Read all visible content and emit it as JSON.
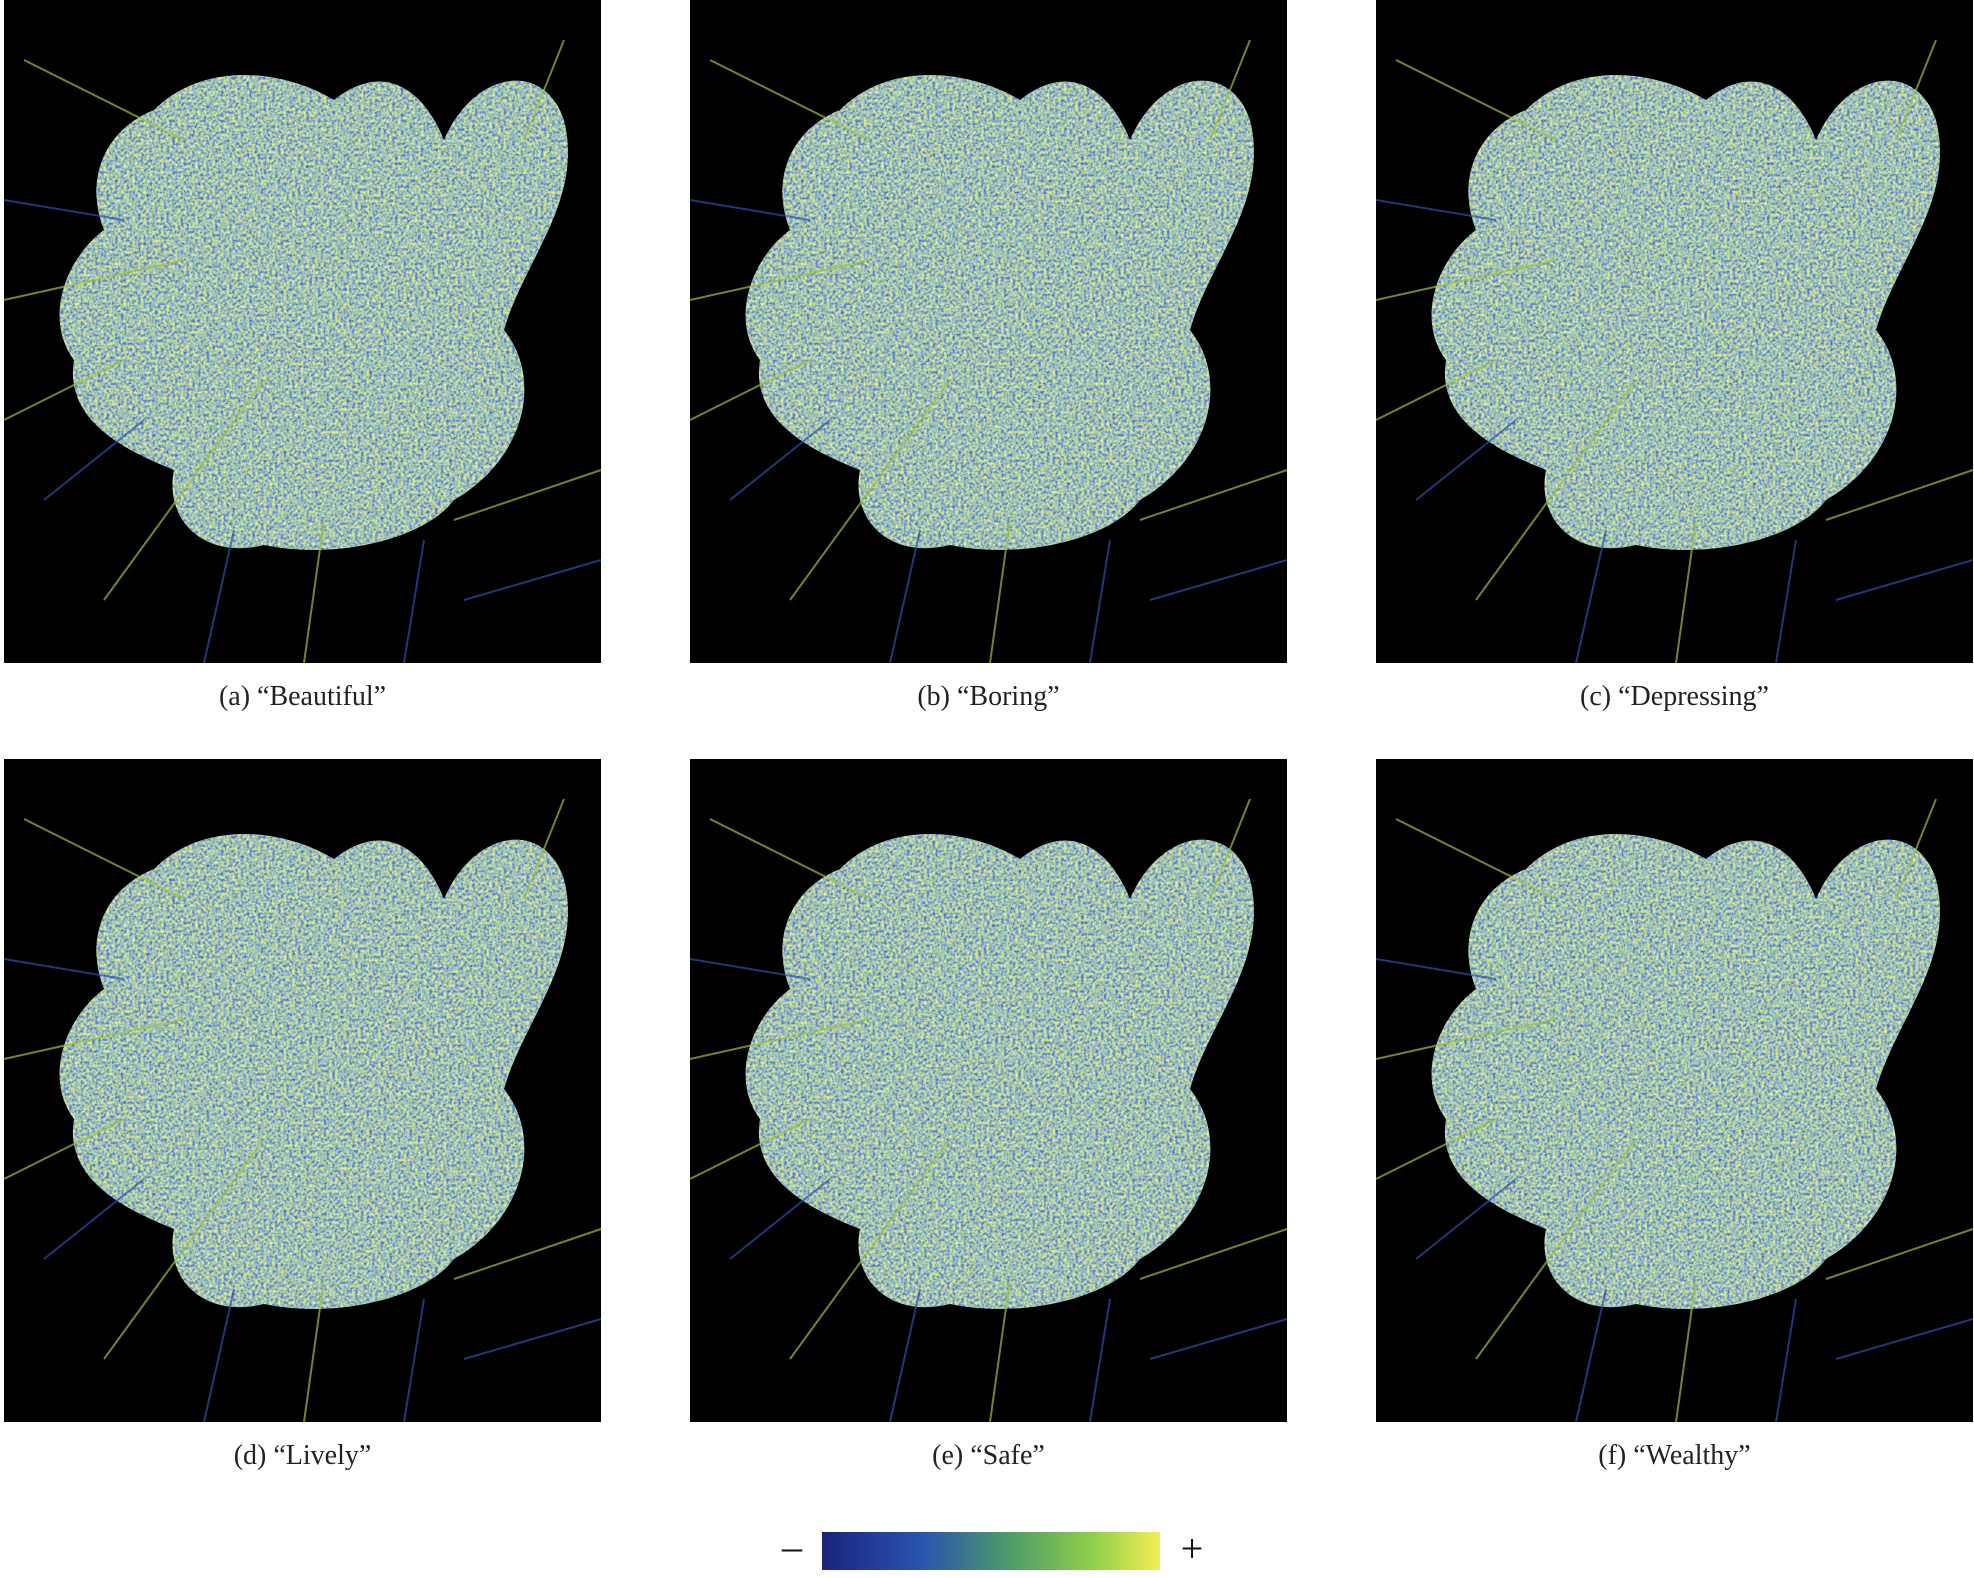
{
  "panels": [
    {
      "caption": "(a) “Beautiful”"
    },
    {
      "caption": "(b) “Boring”"
    },
    {
      "caption": "(c) “Depressing”"
    },
    {
      "caption": "(d) “Lively”"
    },
    {
      "caption": "(e) “Safe”"
    },
    {
      "caption": "(f) “Wealthy”"
    }
  ],
  "colorbar": {
    "min_label": "–",
    "max_label": "+"
  }
}
